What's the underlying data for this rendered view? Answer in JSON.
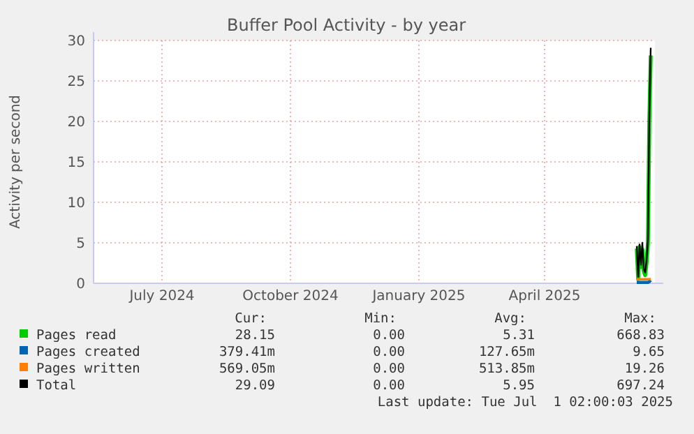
{
  "chart_data": {
    "type": "line",
    "title": "Buffer Pool Activity - by year",
    "ylabel": "Activity per second",
    "x": [
      "2025-06-21",
      "2025-06-22",
      "2025-06-23",
      "2025-06-24",
      "2025-06-25",
      "2025-06-26",
      "2025-06-27",
      "2025-06-28",
      "2025-06-29",
      "2025-06-30",
      "2025-07-01"
    ],
    "series": [
      {
        "name": "Pages read",
        "color": "#00cc00",
        "values": [
          4.3,
          0.5,
          4.5,
          2,
          4.2,
          1.5,
          1,
          2.5,
          5,
          20,
          28.15
        ]
      },
      {
        "name": "Pages created",
        "color": "#0066b3",
        "values": [
          0.1,
          0.1,
          0.1,
          0.1,
          0.1,
          0.1,
          0.1,
          0.1,
          0.1,
          0.2,
          0.38
        ]
      },
      {
        "name": "Pages written",
        "color": "#ff8000",
        "values": [
          0.5,
          0.5,
          0.5,
          0.5,
          0.5,
          0.5,
          0.5,
          0.5,
          0.5,
          0.5,
          0.57
        ]
      },
      {
        "name": "Total",
        "color": "#000000",
        "values": [
          4.6,
          0.8,
          4.8,
          2.3,
          5,
          1.8,
          1.3,
          2.8,
          5.5,
          21,
          29.09
        ]
      }
    ],
    "xlim": [
      "2024-05-28",
      "2025-07-04"
    ],
    "xticks": [
      {
        "value": "2024-07-16",
        "label": "July 2024"
      },
      {
        "value": "2024-10-16",
        "label": "October 2024"
      },
      {
        "value": "2025-01-16",
        "label": "January 2025"
      },
      {
        "value": "2025-04-16",
        "label": "April 2025"
      }
    ],
    "ylim": [
      0,
      30
    ],
    "yticks": [
      0,
      5,
      10,
      15,
      20,
      25,
      30
    ],
    "grid": true,
    "legend": "bottom",
    "marker": "none",
    "line_style": "solid",
    "annotations": [
      "Cur:",
      "Min:",
      "Avg:",
      "Max:",
      "28.15",
      "0.00",
      "5.31",
      "668.83",
      "379.41m",
      "0.00",
      "127.65m",
      "9.65",
      "569.05m",
      "0.00",
      "513.85m",
      "19.26",
      "29.09",
      "0.00",
      "5.95",
      "697.24",
      "Last update: Tue Jul  1 02:00:03 2025"
    ]
  }
}
